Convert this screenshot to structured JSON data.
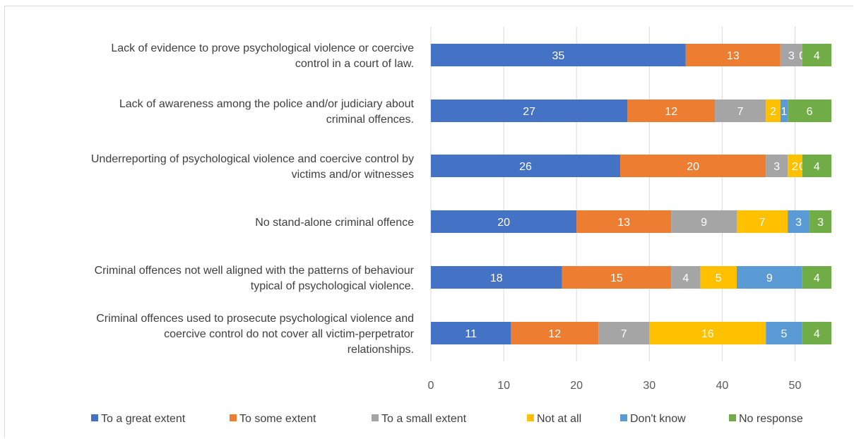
{
  "chart_data": {
    "type": "bar",
    "orientation": "horizontal",
    "stacked": true,
    "categories": [
      [
        "Lack of evidence  to prove psychological violence or coercive",
        "control in a court of law."
      ],
      [
        "Lack of awareness among the police and/or judiciary about",
        "criminal offences."
      ],
      [
        "Underreporting of psychological violence and coercive control by",
        "victims and/or witnesses"
      ],
      [
        "No  stand-alone criminal offence"
      ],
      [
        "Criminal offences not well aligned with the patterns of behaviour",
        "typical of psychological violence."
      ],
      [
        "Criminal offences used to prosecute psychological violence and",
        "coercive control do not cover all victim-perpetrator",
        "relationships."
      ]
    ],
    "series": [
      {
        "name": "To a great extent",
        "color": "#4472c4",
        "values": [
          35,
          27,
          26,
          20,
          18,
          11
        ]
      },
      {
        "name": "To some extent",
        "color": "#ed7d31",
        "values": [
          13,
          12,
          20,
          13,
          15,
          12
        ]
      },
      {
        "name": "To a small extent",
        "color": "#a5a5a5",
        "values": [
          3,
          7,
          3,
          9,
          4,
          7
        ]
      },
      {
        "name": "Not at all",
        "color": "#ffc000",
        "values": [
          0,
          2,
          2,
          7,
          5,
          16
        ]
      },
      {
        "name": "Don't know",
        "color": "#5b9bd5",
        "values": [
          0,
          1,
          0,
          3,
          9,
          5
        ]
      },
      {
        "name": "No response",
        "color": "#70ad47",
        "values": [
          4,
          6,
          4,
          3,
          4,
          4
        ]
      }
    ],
    "xlim": [
      0,
      55
    ],
    "xticks": [
      0,
      10,
      20,
      30,
      40,
      50
    ],
    "grid": true,
    "legend_position": "bottom"
  }
}
